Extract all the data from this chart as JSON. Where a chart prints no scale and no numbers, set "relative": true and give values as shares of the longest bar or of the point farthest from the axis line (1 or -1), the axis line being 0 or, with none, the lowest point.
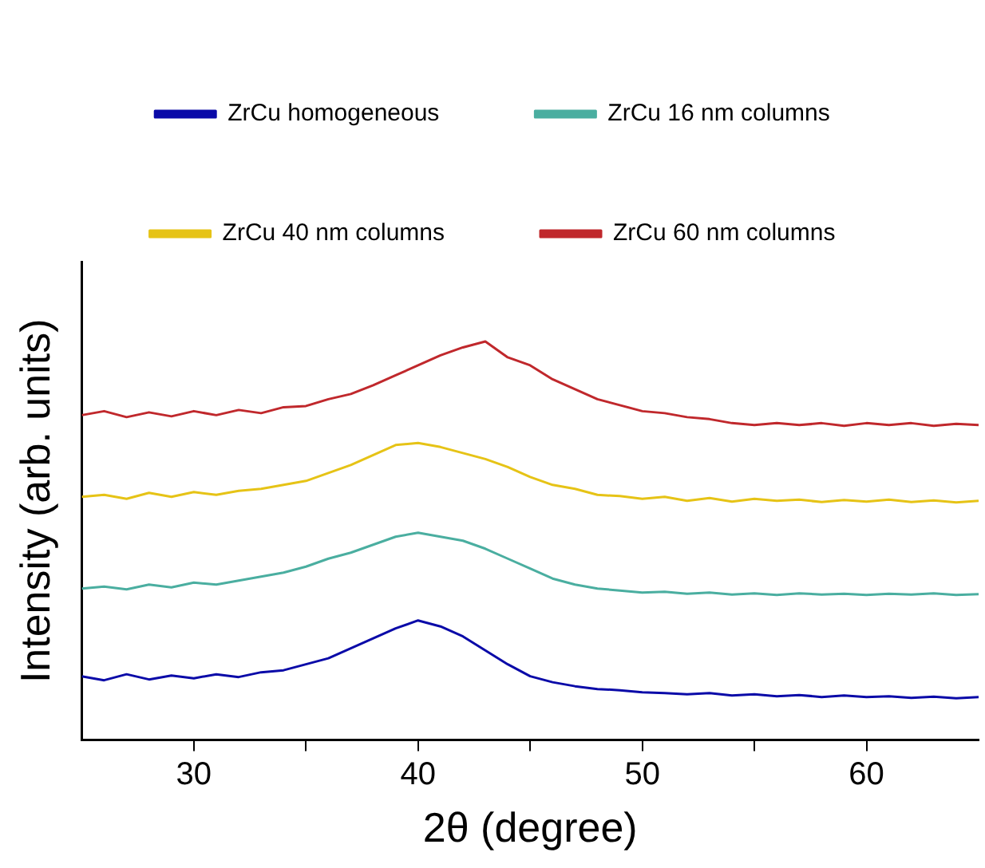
{
  "chart_data": {
    "type": "line",
    "relative": true,
    "xlabel": "2θ (degree)",
    "ylabel": "Intensity (arb. units)",
    "x": [
      25,
      26,
      27,
      28,
      29,
      30,
      31,
      32,
      33,
      34,
      35,
      36,
      37,
      38,
      39,
      40,
      41,
      42,
      43,
      44,
      45,
      46,
      47,
      48,
      49,
      50,
      51,
      52,
      53,
      54,
      55,
      56,
      57,
      58,
      59,
      60,
      61,
      62,
      63,
      64,
      65
    ],
    "xlim": [
      25,
      65
    ],
    "xticks": [
      30,
      {
        "value": 35,
        "label": null
      },
      40,
      {
        "value": 45,
        "label": null
      },
      50,
      {
        "value": 55,
        "label": null
      },
      60
    ],
    "legend": "top",
    "grid": false,
    "marker": "none",
    "line_style": "solid",
    "series": [
      {
        "name": "ZrCu homogeneous",
        "color": "#0a0aa8",
        "values": [
          0.16,
          0.15,
          0.165,
          0.152,
          0.162,
          0.155,
          0.165,
          0.158,
          0.17,
          0.175,
          0.19,
          0.205,
          0.23,
          0.255,
          0.28,
          0.3,
          0.285,
          0.26,
          0.225,
          0.19,
          0.16,
          0.145,
          0.135,
          0.128,
          0.125,
          0.12,
          0.118,
          0.115,
          0.118,
          0.112,
          0.115,
          0.11,
          0.113,
          0.108,
          0.112,
          0.108,
          0.11,
          0.106,
          0.109,
          0.105,
          0.108
        ]
      },
      {
        "name": "ZrCu 16 nm columns",
        "color": "#4aaea0",
        "values": [
          0.38,
          0.385,
          0.378,
          0.39,
          0.383,
          0.395,
          0.39,
          0.4,
          0.41,
          0.42,
          0.435,
          0.455,
          0.47,
          0.49,
          0.51,
          0.52,
          0.51,
          0.5,
          0.48,
          0.455,
          0.43,
          0.405,
          0.39,
          0.38,
          0.375,
          0.37,
          0.372,
          0.367,
          0.37,
          0.365,
          0.368,
          0.364,
          0.368,
          0.365,
          0.367,
          0.364,
          0.367,
          0.365,
          0.368,
          0.364,
          0.366
        ]
      },
      {
        "name": "ZrCu 40 nm columns",
        "color": "#e6c316",
        "values": [
          0.61,
          0.615,
          0.605,
          0.62,
          0.61,
          0.622,
          0.615,
          0.625,
          0.63,
          0.64,
          0.65,
          0.67,
          0.69,
          0.715,
          0.74,
          0.745,
          0.735,
          0.72,
          0.705,
          0.685,
          0.66,
          0.64,
          0.63,
          0.615,
          0.612,
          0.605,
          0.61,
          0.6,
          0.607,
          0.598,
          0.605,
          0.6,
          0.603,
          0.597,
          0.602,
          0.598,
          0.603,
          0.597,
          0.601,
          0.596,
          0.6
        ]
      },
      {
        "name": "ZrCu 60 nm columns",
        "color": "#c0282c",
        "values": [
          0.815,
          0.825,
          0.81,
          0.822,
          0.812,
          0.825,
          0.815,
          0.828,
          0.82,
          0.835,
          0.838,
          0.855,
          0.868,
          0.89,
          0.915,
          0.94,
          0.965,
          0.985,
          1.0,
          0.96,
          0.94,
          0.905,
          0.88,
          0.855,
          0.84,
          0.825,
          0.82,
          0.81,
          0.805,
          0.795,
          0.79,
          0.795,
          0.79,
          0.795,
          0.788,
          0.795,
          0.79,
          0.795,
          0.788,
          0.793,
          0.79
        ]
      }
    ]
  }
}
